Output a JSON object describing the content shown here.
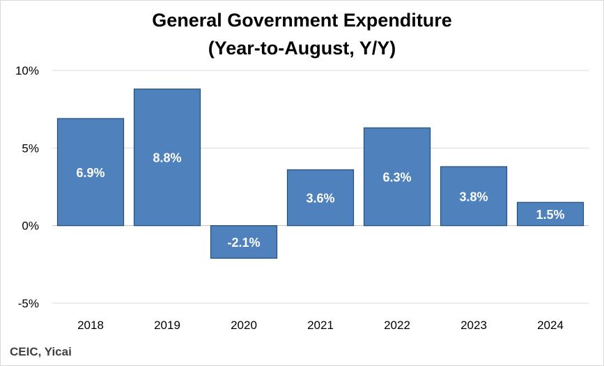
{
  "chart_data": {
    "type": "bar",
    "title": "General Government Expenditure",
    "subtitle": "(Year-to-August, Y/Y)",
    "categories": [
      "2018",
      "2019",
      "2020",
      "2021",
      "2022",
      "2023",
      "2024"
    ],
    "values": [
      6.9,
      8.8,
      -2.1,
      3.6,
      6.3,
      3.8,
      1.5
    ],
    "data_labels": [
      "6.9%",
      "8.8%",
      "-2.1%",
      "3.6%",
      "6.3%",
      "3.8%",
      "1.5%"
    ],
    "ylim": [
      -5,
      10
    ],
    "yticks": [
      10,
      5,
      0,
      -5
    ],
    "ytick_labels": [
      "10%",
      "5%",
      "0%",
      "-5%"
    ],
    "xlabel": "",
    "ylabel": "",
    "grid": true,
    "bar_color": "#4f81bd",
    "bar_edge_color": "#1f4e79",
    "source": "CEIC, Yicai"
  }
}
